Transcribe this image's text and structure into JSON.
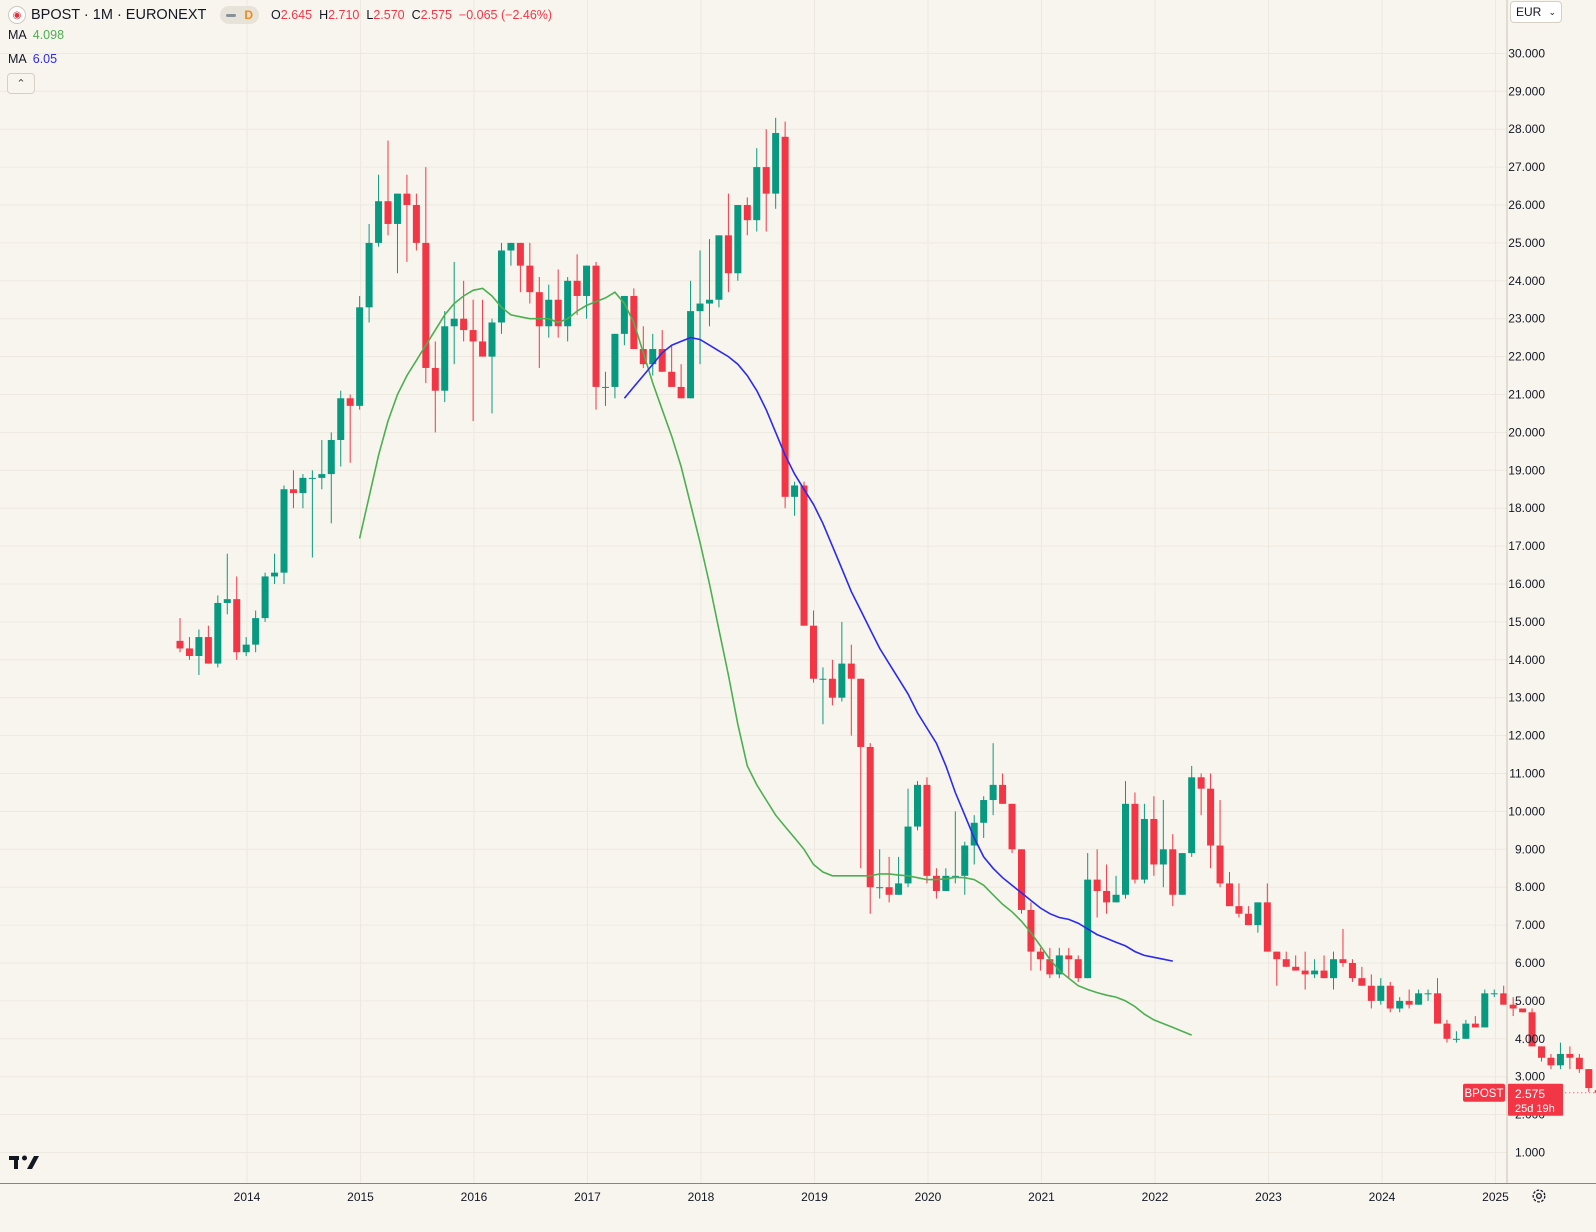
{
  "header": {
    "symbol_title": "BPOST · 1M · EURONEXT",
    "interval_badge": "D",
    "ohlc": [
      {
        "k": "O",
        "v": "2.645"
      },
      {
        "k": "H",
        "v": "2.710"
      },
      {
        "k": "L",
        "v": "2.570"
      },
      {
        "k": "C",
        "v": "2.575"
      },
      {
        "k": "",
        "v": "−0.065 (−2.46%)"
      }
    ]
  },
  "indicators": [
    {
      "label": "MA",
      "value": "4.098",
      "color": "#4caf50"
    },
    {
      "label": "MA",
      "value": "6.05",
      "color": "#2a2af0"
    }
  ],
  "currency": "EUR",
  "price_tag": {
    "symbol": "BPOST",
    "price": "2.575",
    "countdown": "25d 19h"
  },
  "colors": {
    "up": "#089981",
    "down": "#f23645",
    "background": "#f8f5ef",
    "grid": "#ede9e0",
    "ma_short": "#4caf50",
    "ma_long": "#2a2af0"
  },
  "chart_data": {
    "type": "candlestick",
    "interval": "1M",
    "y_axis": {
      "min": 1,
      "max": 30,
      "ticks": [
        "1.000",
        "2.000",
        "3.000",
        "4.000",
        "5.000",
        "6.000",
        "7.000",
        "8.000",
        "9.000",
        "10.000",
        "11.000",
        "12.000",
        "13.000",
        "14.000",
        "15.000",
        "16.000",
        "17.000",
        "18.000",
        "19.000",
        "20.000",
        "21.000",
        "22.000",
        "23.000",
        "24.000",
        "25.000",
        "26.000",
        "27.000",
        "28.000",
        "29.000",
        "30.000"
      ]
    },
    "x_axis": {
      "ticks": [
        "2014",
        "2015",
        "2016",
        "2017",
        "2018",
        "2019",
        "2020",
        "2021",
        "2022",
        "2023",
        "2024",
        "2025"
      ]
    },
    "x_range": [
      2013.55,
      2024.67
    ],
    "candles": [
      [
        14.5,
        15.1,
        14.2,
        14.3
      ],
      [
        14.3,
        14.6,
        14.0,
        14.1
      ],
      [
        14.1,
        14.8,
        13.6,
        14.6
      ],
      [
        14.6,
        14.9,
        13.9,
        13.9
      ],
      [
        13.9,
        15.7,
        13.8,
        15.5
      ],
      [
        15.5,
        16.8,
        15.2,
        15.6
      ],
      [
        15.6,
        16.2,
        14.0,
        14.2
      ],
      [
        14.2,
        14.6,
        14.1,
        14.4
      ],
      [
        14.4,
        15.3,
        14.2,
        15.1
      ],
      [
        15.1,
        16.3,
        15.0,
        16.2
      ],
      [
        16.2,
        16.8,
        16.0,
        16.3
      ],
      [
        16.3,
        18.6,
        16.0,
        18.5
      ],
      [
        18.5,
        19.0,
        18.0,
        18.4
      ],
      [
        18.4,
        18.9,
        18.0,
        18.8
      ],
      [
        18.8,
        19.0,
        16.7,
        18.8
      ],
      [
        18.8,
        19.8,
        18.5,
        18.9
      ],
      [
        18.9,
        20.0,
        17.6,
        19.8
      ],
      [
        19.8,
        21.1,
        19.1,
        20.9
      ],
      [
        20.9,
        21.0,
        19.2,
        20.7
      ],
      [
        20.7,
        23.6,
        20.6,
        23.3
      ],
      [
        23.3,
        25.5,
        22.9,
        25.0
      ],
      [
        25.0,
        26.8,
        24.9,
        26.1
      ],
      [
        26.1,
        27.7,
        25.2,
        25.5
      ],
      [
        25.5,
        26.3,
        24.2,
        26.3
      ],
      [
        26.3,
        26.8,
        24.5,
        26.0
      ],
      [
        26.0,
        26.3,
        24.8,
        25.0
      ],
      [
        25.0,
        27.0,
        21.3,
        21.7
      ],
      [
        21.7,
        22.4,
        20.0,
        21.1
      ],
      [
        21.1,
        23.2,
        20.8,
        22.8
      ],
      [
        22.8,
        24.5,
        21.8,
        23.0
      ],
      [
        23.0,
        24.0,
        22.4,
        22.7
      ],
      [
        22.7,
        23.5,
        20.3,
        22.4
      ],
      [
        22.4,
        23.5,
        22.0,
        22.0
      ],
      [
        22.0,
        23.0,
        20.5,
        22.9
      ],
      [
        22.9,
        25.0,
        22.6,
        24.8
      ],
      [
        24.8,
        25.0,
        24.4,
        25.0
      ],
      [
        25.0,
        25.0,
        23.7,
        24.4
      ],
      [
        24.4,
        25.0,
        23.4,
        23.7
      ],
      [
        23.7,
        24.1,
        21.7,
        22.8
      ],
      [
        22.8,
        23.9,
        22.5,
        23.5
      ],
      [
        23.5,
        24.3,
        22.5,
        22.8
      ],
      [
        22.8,
        24.1,
        22.4,
        24.0
      ],
      [
        24.0,
        24.7,
        23.1,
        23.6
      ],
      [
        23.6,
        24.4,
        23.0,
        24.4
      ],
      [
        24.4,
        24.5,
        20.6,
        21.2
      ],
      [
        21.2,
        21.6,
        20.7,
        21.2
      ],
      [
        21.2,
        22.6,
        20.9,
        22.6
      ],
      [
        22.6,
        23.6,
        22.3,
        23.6
      ],
      [
        23.6,
        23.8,
        22.4,
        22.2
      ],
      [
        22.2,
        22.8,
        21.7,
        21.8
      ],
      [
        21.8,
        22.6,
        21.5,
        22.2
      ],
      [
        22.2,
        22.7,
        21.6,
        21.6
      ],
      [
        21.6,
        22.3,
        21.2,
        21.2
      ],
      [
        21.2,
        21.8,
        20.9,
        20.9
      ],
      [
        20.9,
        24.0,
        20.9,
        23.2
      ],
      [
        23.2,
        24.8,
        21.8,
        23.4
      ],
      [
        23.4,
        25.1,
        22.8,
        23.5
      ],
      [
        23.5,
        25.2,
        23.3,
        25.2
      ],
      [
        25.2,
        26.3,
        23.7,
        24.2
      ],
      [
        24.2,
        25.9,
        24.0,
        26.0
      ],
      [
        26.0,
        26.2,
        25.2,
        25.6
      ],
      [
        25.6,
        27.5,
        25.3,
        27.0
      ],
      [
        27.0,
        28.0,
        25.3,
        26.3
      ],
      [
        26.3,
        28.3,
        25.9,
        27.9
      ],
      [
        27.8,
        28.2,
        18.0,
        18.3
      ],
      [
        18.3,
        18.7,
        17.8,
        18.6
      ],
      [
        18.6,
        18.7,
        14.9,
        14.9
      ],
      [
        14.9,
        15.3,
        13.4,
        13.5
      ],
      [
        13.5,
        13.8,
        12.3,
        13.5
      ],
      [
        13.5,
        14.0,
        12.8,
        13.0
      ],
      [
        13.0,
        15.0,
        12.9,
        13.9
      ],
      [
        13.9,
        14.4,
        12.0,
        13.5
      ],
      [
        13.5,
        13.5,
        8.5,
        11.7
      ],
      [
        11.7,
        11.8,
        7.3,
        8.0
      ],
      [
        8.0,
        9.0,
        7.7,
        8.0
      ],
      [
        8.0,
        8.8,
        7.6,
        7.8
      ],
      [
        7.8,
        8.8,
        7.8,
        8.1
      ],
      [
        8.1,
        10.6,
        8.0,
        9.6
      ],
      [
        9.6,
        10.8,
        9.5,
        10.7
      ],
      [
        10.7,
        10.9,
        8.1,
        8.3
      ],
      [
        8.3,
        8.5,
        7.7,
        7.9
      ],
      [
        7.9,
        8.5,
        7.9,
        8.3
      ],
      [
        8.3,
        10.0,
        8.1,
        8.3
      ],
      [
        8.3,
        9.2,
        7.8,
        9.1
      ],
      [
        9.1,
        9.9,
        8.6,
        9.7
      ],
      [
        9.7,
        10.4,
        9.3,
        10.3
      ],
      [
        10.3,
        11.8,
        9.9,
        10.7
      ],
      [
        10.7,
        11.0,
        10.2,
        10.2
      ],
      [
        10.2,
        10.2,
        8.9,
        9.0
      ],
      [
        9.0,
        9.0,
        7.3,
        7.4
      ],
      [
        7.4,
        7.6,
        5.8,
        6.3
      ],
      [
        6.3,
        6.4,
        5.8,
        6.1
      ],
      [
        6.1,
        6.4,
        5.6,
        5.7
      ],
      [
        5.7,
        6.4,
        5.6,
        6.2
      ],
      [
        6.2,
        6.4,
        5.6,
        6.1
      ],
      [
        6.1,
        6.2,
        5.5,
        5.6
      ],
      [
        5.6,
        8.9,
        5.6,
        8.2
      ],
      [
        8.2,
        9.0,
        7.2,
        7.9
      ],
      [
        7.9,
        8.6,
        7.3,
        7.6
      ],
      [
        7.6,
        8.3,
        7.6,
        7.8
      ],
      [
        7.8,
        10.8,
        7.7,
        10.2
      ],
      [
        10.2,
        10.5,
        8.1,
        8.2
      ],
      [
        8.2,
        10.2,
        8.1,
        9.8
      ],
      [
        9.8,
        10.4,
        8.3,
        8.6
      ],
      [
        8.6,
        10.3,
        8.0,
        9.0
      ],
      [
        9.0,
        9.4,
        7.5,
        7.8
      ],
      [
        7.8,
        8.9,
        7.8,
        8.9
      ],
      [
        8.9,
        11.2,
        8.8,
        10.9
      ],
      [
        10.9,
        11.0,
        9.9,
        10.6
      ],
      [
        10.6,
        11.0,
        8.5,
        9.1
      ],
      [
        9.1,
        10.3,
        8.0,
        8.1
      ],
      [
        8.1,
        8.4,
        7.5,
        7.5
      ],
      [
        7.5,
        8.1,
        7.2,
        7.3
      ],
      [
        7.3,
        7.5,
        7.0,
        7.0
      ],
      [
        7.0,
        7.6,
        6.8,
        7.6
      ],
      [
        7.6,
        8.1,
        6.3,
        6.3
      ],
      [
        6.3,
        6.3,
        5.4,
        6.1
      ],
      [
        6.1,
        6.3,
        5.9,
        5.9
      ],
      [
        5.9,
        6.2,
        5.8,
        5.8
      ],
      [
        5.8,
        6.3,
        5.3,
        5.7
      ],
      [
        5.7,
        6.1,
        5.6,
        5.8
      ],
      [
        5.8,
        6.2,
        5.6,
        5.6
      ],
      [
        5.6,
        6.3,
        5.3,
        6.1
      ],
      [
        6.1,
        6.9,
        5.9,
        6.0
      ],
      [
        6.0,
        6.1,
        5.5,
        5.6
      ],
      [
        5.6,
        5.9,
        5.4,
        5.4
      ],
      [
        5.4,
        5.7,
        4.8,
        5.0
      ],
      [
        5.0,
        5.6,
        4.9,
        5.4
      ],
      [
        5.4,
        5.5,
        4.7,
        4.8
      ],
      [
        4.8,
        5.1,
        4.7,
        5.0
      ],
      [
        5.0,
        5.3,
        4.8,
        4.9
      ],
      [
        4.9,
        5.3,
        4.9,
        5.2
      ],
      [
        5.2,
        5.3,
        5.0,
        5.2
      ],
      [
        5.2,
        5.6,
        4.6,
        4.4
      ],
      [
        4.4,
        4.5,
        3.9,
        4.0
      ],
      [
        4.0,
        4.2,
        3.9,
        4.0
      ],
      [
        4.0,
        4.5,
        4.0,
        4.4
      ],
      [
        4.4,
        4.6,
        4.3,
        4.3
      ],
      [
        4.3,
        5.3,
        4.3,
        5.2
      ],
      [
        5.2,
        5.3,
        5.1,
        5.2
      ],
      [
        5.2,
        5.4,
        4.9,
        4.9
      ],
      [
        4.9,
        5.1,
        4.6,
        4.8
      ],
      [
        4.8,
        4.8,
        4.7,
        4.7
      ],
      [
        4.7,
        4.8,
        3.8,
        3.8
      ],
      [
        3.8,
        3.8,
        3.4,
        3.5
      ],
      [
        3.5,
        3.6,
        3.2,
        3.3
      ],
      [
        3.3,
        3.9,
        3.2,
        3.6
      ],
      [
        3.6,
        3.8,
        3.2,
        3.5
      ],
      [
        3.5,
        3.6,
        3.1,
        3.2
      ],
      [
        3.2,
        3.2,
        2.6,
        2.7
      ],
      [
        2.645,
        2.71,
        2.57,
        2.575
      ]
    ],
    "series": [
      {
        "name": "MA",
        "color": "#4caf50",
        "start_index": 19,
        "values": [
          17.2,
          18.3,
          19.4,
          20.3,
          21.0,
          21.5,
          21.9,
          22.3,
          22.7,
          23.1,
          23.4,
          23.6,
          23.75,
          23.8,
          23.6,
          23.3,
          23.1,
          23.05,
          23.0,
          23.0,
          23.0,
          22.9,
          23.0,
          23.2,
          23.35,
          23.45,
          23.55,
          23.7,
          23.4,
          22.9,
          22.1,
          21.3,
          20.6,
          19.9,
          19.1,
          18.1,
          17.1,
          16.0,
          14.8,
          13.6,
          12.3,
          11.2,
          10.7,
          10.3,
          9.9,
          9.6,
          9.3,
          9.0,
          8.6,
          8.4,
          8.3,
          8.3,
          8.3,
          8.3,
          8.3,
          8.35,
          8.35,
          8.32,
          8.3,
          8.25,
          8.2,
          8.2,
          8.22,
          8.26,
          8.25,
          8.2,
          8.05,
          7.8,
          7.55,
          7.35,
          7.1,
          6.8,
          6.45,
          6.1,
          5.8,
          5.6,
          5.4,
          5.3,
          5.22,
          5.15,
          5.1,
          5.0,
          4.85,
          4.65,
          4.5,
          4.4,
          4.3,
          4.2,
          4.098
        ]
      },
      {
        "name": "MA",
        "color": "#2a2af0",
        "start_index": 47,
        "values": [
          20.9,
          21.2,
          21.5,
          21.8,
          22.1,
          22.3,
          22.4,
          22.5,
          22.45,
          22.3,
          22.15,
          22.0,
          21.8,
          21.5,
          21.1,
          20.6,
          20.0,
          19.4,
          18.9,
          18.5,
          18.1,
          17.6,
          17.0,
          16.4,
          15.8,
          15.3,
          14.8,
          14.3,
          13.9,
          13.5,
          13.1,
          12.6,
          12.2,
          11.8,
          11.2,
          10.5,
          9.9,
          9.3,
          8.8,
          8.5,
          8.25,
          8.05,
          7.85,
          7.65,
          7.45,
          7.3,
          7.2,
          7.15,
          7.05,
          6.9,
          6.75,
          6.65,
          6.55,
          6.45,
          6.3,
          6.2,
          6.15,
          6.1,
          6.05
        ]
      }
    ]
  }
}
